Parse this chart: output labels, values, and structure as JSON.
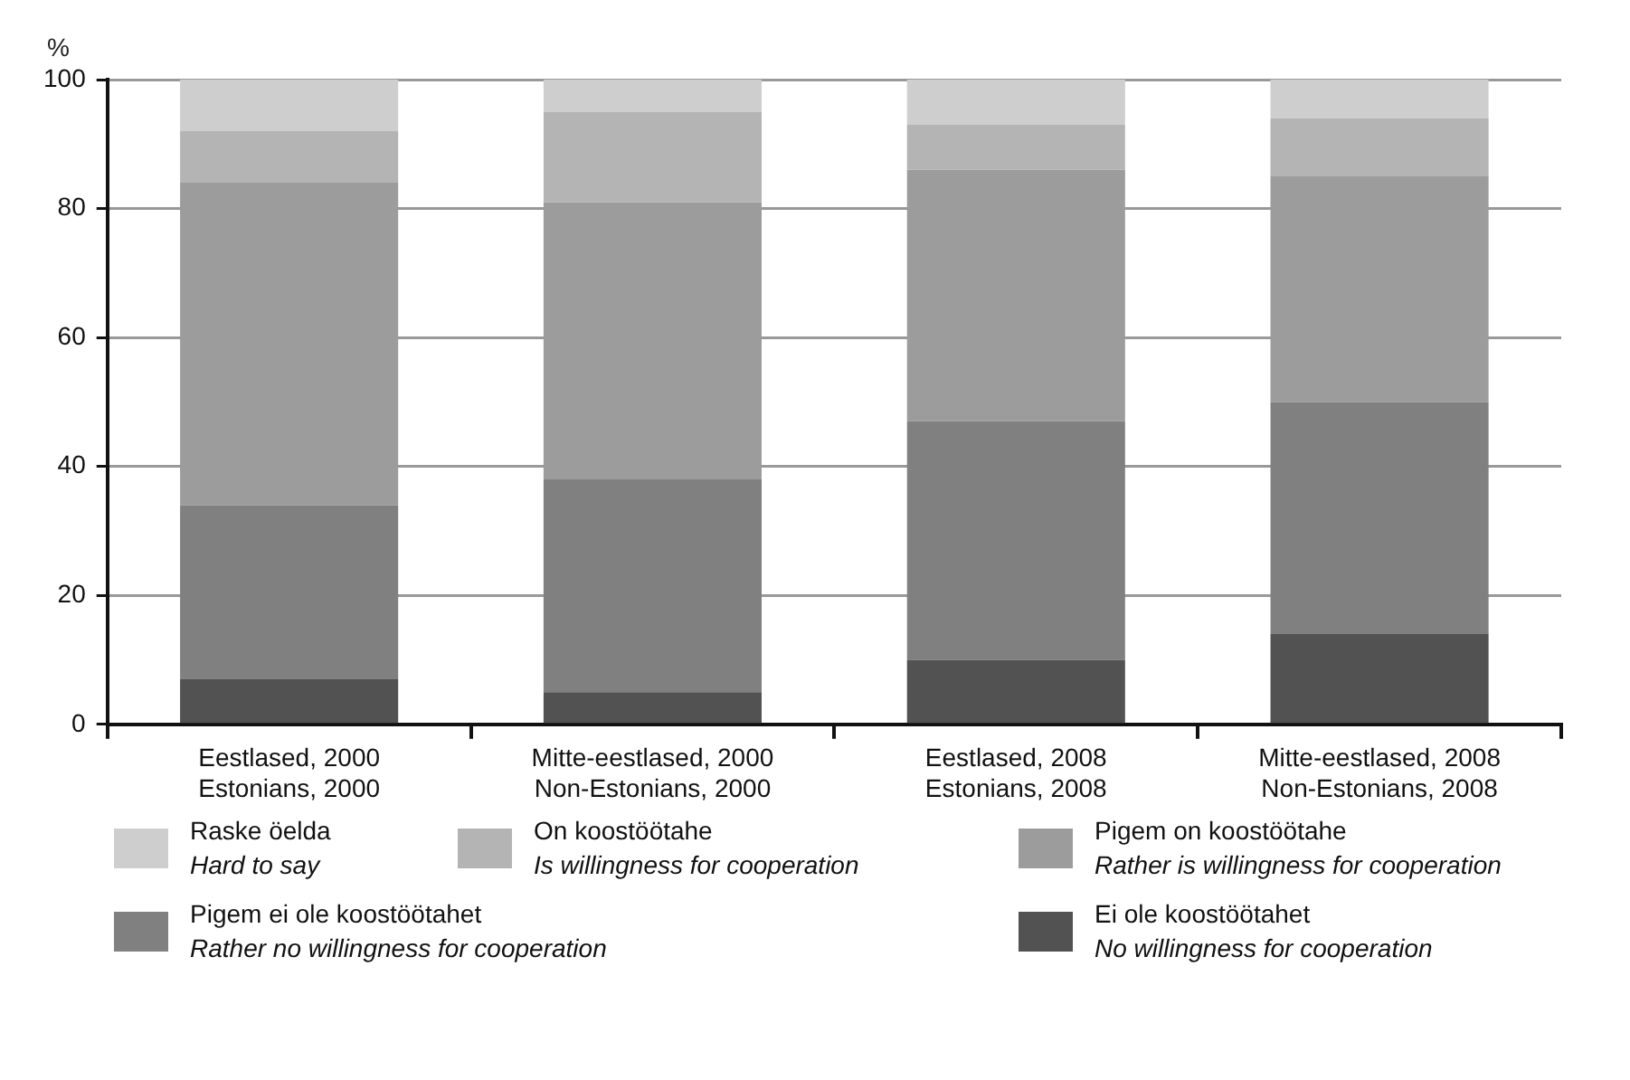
{
  "chart_data": {
    "type": "bar",
    "stacked": true,
    "ylabel": "%",
    "categories": [
      "Eestlased, 2000\nEstonians, 2000",
      "Mitte-eestlased, 2000\nNon-Estonians, 2000",
      "Eestlased, 2008\nEstonians, 2008",
      "Mitte-eestlased, 2008\nNon-Estonians, 2008"
    ],
    "series": [
      {
        "name": "Ei ole koostöötahet\nNo willingness for cooperation",
        "color": "#525252",
        "values": [
          7,
          5,
          10,
          14
        ]
      },
      {
        "name": "Pigem ei ole koostöötahet\nRather no willingness for cooperation",
        "color": "#808080",
        "values": [
          27,
          33,
          37,
          36
        ]
      },
      {
        "name": "Pigem on koostöötahe\nRather is willingness for cooperation",
        "color": "#9c9c9c",
        "values": [
          50,
          43,
          39,
          35
        ]
      },
      {
        "name": "On koostöötahe\nIs willingness for cooperation",
        "color": "#b4b4b4",
        "values": [
          8,
          14,
          7,
          9
        ]
      },
      {
        "name": "Raske öelda\nHard to say",
        "color": "#cecece",
        "values": [
          8,
          5,
          7,
          6
        ]
      }
    ],
    "ylim": [
      0,
      100
    ],
    "yticks": [
      0,
      20,
      40,
      60,
      80,
      100
    ],
    "grid": "y",
    "legend": "bottom"
  }
}
